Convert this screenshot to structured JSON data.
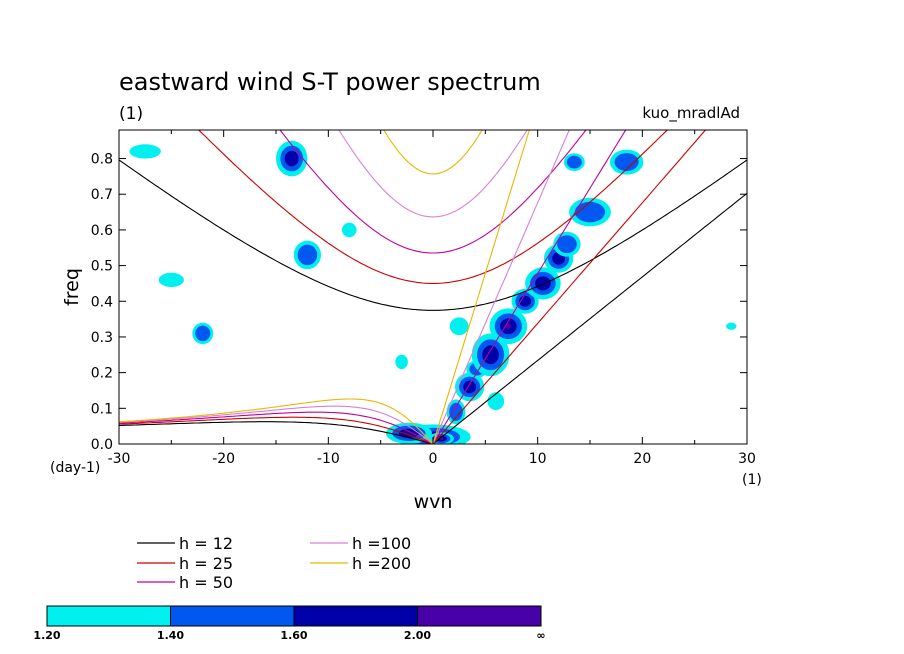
{
  "chart_data": {
    "type": "contour",
    "title": "eastward wind S-T power spectrum",
    "subtitle_left": "(1)",
    "subtitle_right": "kuo_mradlAd",
    "xlabel": "wvn",
    "ylabel": "freq",
    "x_unit_label": "(1)",
    "y_unit_label": "(day-1)",
    "xlim": [
      -30,
      30
    ],
    "ylim": [
      0,
      0.88
    ],
    "xticks": [
      -30,
      -20,
      -10,
      0,
      10,
      20,
      30
    ],
    "yticks": [
      0.0,
      0.1,
      0.2,
      0.3,
      0.4,
      0.5,
      0.6,
      0.7,
      0.8
    ],
    "ytick_labels": [
      "0.0",
      "0.1",
      "0.2",
      "0.3",
      "0.4",
      "0.5",
      "0.6",
      "0.7",
      "0.8"
    ],
    "dispersion_curves": [
      {
        "label": "h = 12",
        "h": 12,
        "color": "#000000"
      },
      {
        "label": "h = 25",
        "h": 25,
        "color": "#cc0000"
      },
      {
        "label": "h = 50",
        "h": 50,
        "color": "#c000a0"
      },
      {
        "label": "h =100",
        "h": 100,
        "color": "#d880d8"
      },
      {
        "label": "h =200",
        "h": 200,
        "color": "#e8b800"
      }
    ],
    "colorbar": {
      "levels": [
        "1.20",
        "1.40",
        "1.60",
        "2.00",
        "∞"
      ],
      "colors": [
        "#00f0f0",
        "#0058f0",
        "#0000a8",
        "#4800a8"
      ]
    },
    "contour_patches": [
      {
        "x": 0,
        "y": 0.02,
        "rx": 3.6,
        "ry": 0.035,
        "level": 3
      },
      {
        "x": -2.3,
        "y": 0.03,
        "rx": 2.2,
        "ry": 0.03,
        "level": 2
      },
      {
        "x": 0.8,
        "y": 0.015,
        "rx": 1.2,
        "ry": 0.018,
        "level": 3
      },
      {
        "x": 2.2,
        "y": 0.09,
        "rx": 0.9,
        "ry": 0.035,
        "level": 1
      },
      {
        "x": 3.5,
        "y": 0.16,
        "rx": 1.4,
        "ry": 0.04,
        "level": 2
      },
      {
        "x": 4.2,
        "y": 0.21,
        "rx": 1.0,
        "ry": 0.025,
        "level": 1
      },
      {
        "x": 5.5,
        "y": 0.25,
        "rx": 1.8,
        "ry": 0.06,
        "level": 2
      },
      {
        "x": 7.2,
        "y": 0.33,
        "rx": 1.8,
        "ry": 0.05,
        "level": 3
      },
      {
        "x": 8.8,
        "y": 0.4,
        "rx": 1.3,
        "ry": 0.035,
        "level": 2
      },
      {
        "x": 10.5,
        "y": 0.45,
        "rx": 1.7,
        "ry": 0.045,
        "level": 2
      },
      {
        "x": 12.0,
        "y": 0.52,
        "rx": 1.4,
        "ry": 0.04,
        "level": 2
      },
      {
        "x": 12.8,
        "y": 0.56,
        "rx": 1.3,
        "ry": 0.035,
        "level": 1
      },
      {
        "x": 15.0,
        "y": 0.65,
        "rx": 2.0,
        "ry": 0.04,
        "level": 1
      },
      {
        "x": 18.5,
        "y": 0.79,
        "rx": 1.6,
        "ry": 0.035,
        "level": 1
      },
      {
        "x": -13.5,
        "y": 0.8,
        "rx": 1.5,
        "ry": 0.05,
        "level": 2
      },
      {
        "x": -12.0,
        "y": 0.53,
        "rx": 1.3,
        "ry": 0.04,
        "level": 1
      },
      {
        "x": -22.0,
        "y": 0.31,
        "rx": 1.0,
        "ry": 0.03,
        "level": 1
      },
      {
        "x": -25.0,
        "y": 0.46,
        "rx": 1.2,
        "ry": 0.02,
        "level": 0
      },
      {
        "x": -27.5,
        "y": 0.82,
        "rx": 1.5,
        "ry": 0.02,
        "level": 0
      },
      {
        "x": -3.0,
        "y": 0.23,
        "rx": 0.6,
        "ry": 0.02,
        "level": 0
      },
      {
        "x": 2.5,
        "y": 0.33,
        "rx": 0.9,
        "ry": 0.025,
        "level": 0
      },
      {
        "x": 6.0,
        "y": 0.12,
        "rx": 0.8,
        "ry": 0.025,
        "level": 0
      },
      {
        "x": -8.0,
        "y": 0.6,
        "rx": 0.7,
        "ry": 0.02,
        "level": 0
      },
      {
        "x": 13.5,
        "y": 0.79,
        "rx": 1.0,
        "ry": 0.025,
        "level": 1
      },
      {
        "x": 28.5,
        "y": 0.33,
        "rx": 0.5,
        "ry": 0.01,
        "level": 0
      }
    ]
  }
}
